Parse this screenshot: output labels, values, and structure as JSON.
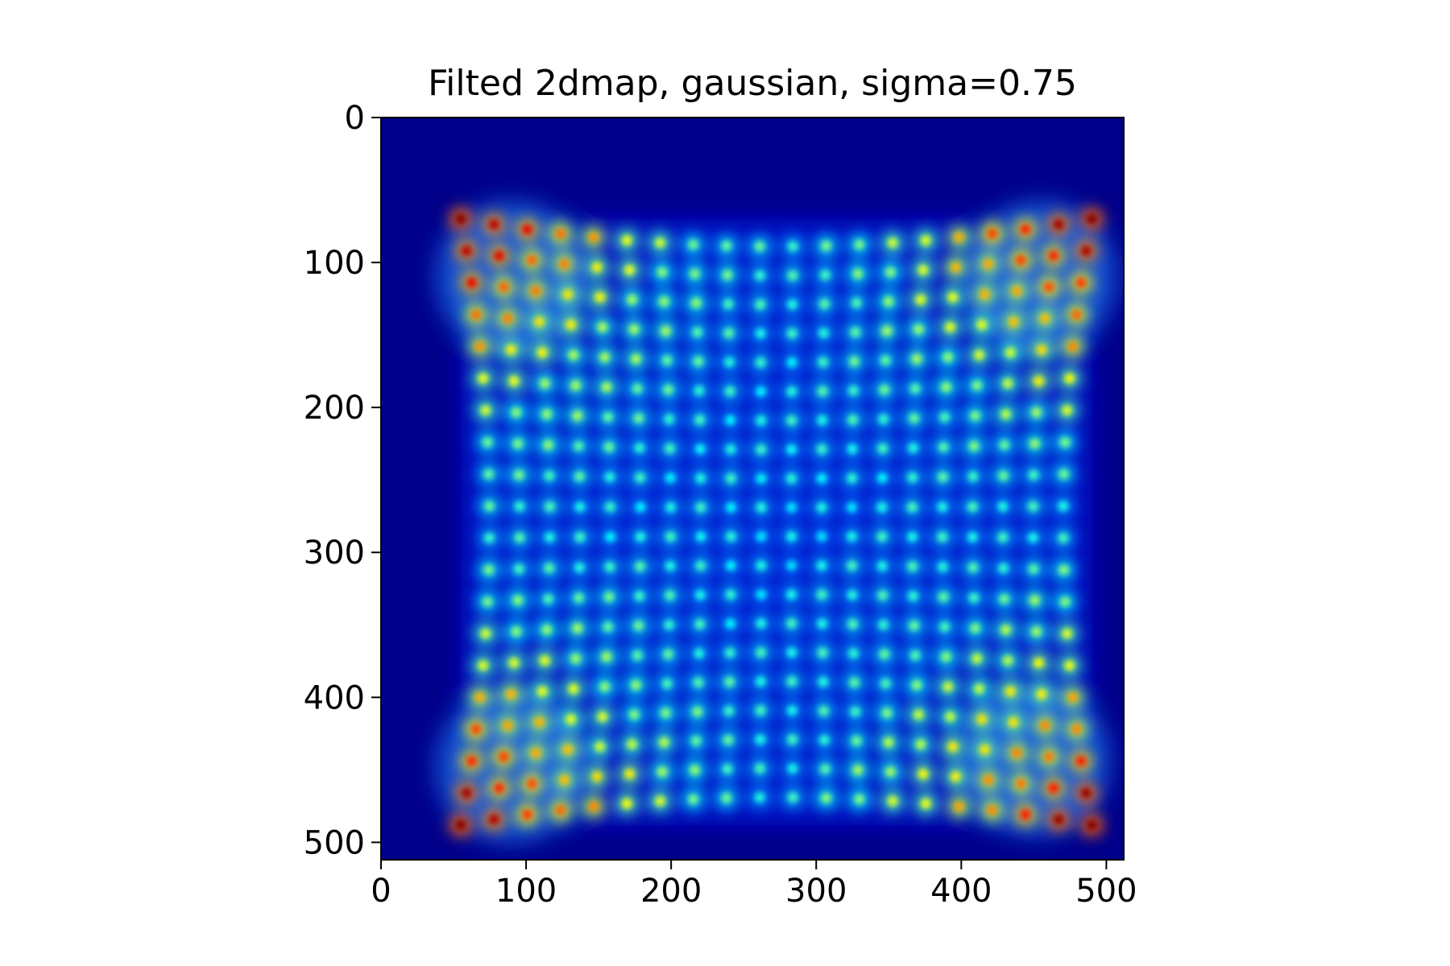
{
  "chart_data": {
    "type": "heatmap",
    "title": "Filted 2dmap, gaussian, sigma=0.75",
    "xlabel": "",
    "ylabel": "",
    "xlim": [
      0,
      512
    ],
    "ylim": [
      512,
      0
    ],
    "y_axis_inverted": true,
    "x_ticks": [
      "0",
      "100",
      "200",
      "300",
      "400",
      "500"
    ],
    "y_ticks": [
      "0",
      "100",
      "200",
      "300",
      "400",
      "500"
    ],
    "x_tick_values": [
      0,
      100,
      200,
      300,
      400,
      500
    ],
    "y_tick_values": [
      0,
      100,
      200,
      300,
      400,
      500
    ],
    "colormap": "jet",
    "background_color": "#00008b",
    "grid": false,
    "legend": "none",
    "pattern": {
      "description_of_content": "grid of gaussian-blurred spots forming a pincushion-distorted lattice",
      "region_x": [
        55,
        490
      ],
      "region_y": [
        70,
        488
      ],
      "lattice_columns": 20,
      "lattice_rows": 20,
      "spot_sigma": 0.75,
      "high_intensity_corners": [
        "top-left",
        "top-right",
        "bottom-left",
        "bottom-right"
      ]
    }
  }
}
